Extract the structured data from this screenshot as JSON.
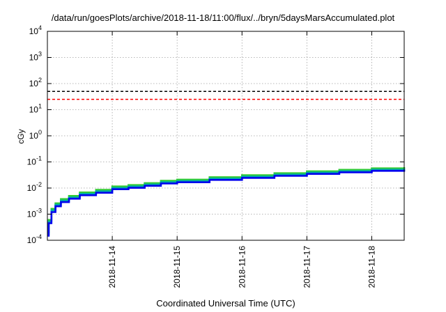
{
  "chart_data": {
    "type": "line",
    "title": "/data/run/goesPlots/archive/2018-11-18/11:00/flux/../bryn/5daysMarsAccumulated.plot",
    "xlabel": "Coordinated Universal Time (UTC)",
    "ylabel": "cGy",
    "yscale": "log",
    "ylim": [
      0.0001,
      10000
    ],
    "xlim": [
      "2018-11-13T00:00",
      "2018-11-18T12:00"
    ],
    "x_ticks": [
      "2018-11-14",
      "2018-11-15",
      "2018-11-16",
      "2018-11-17",
      "2018-11-18"
    ],
    "y_ticks": [
      {
        "value": 0.0001,
        "base": "10",
        "exp": "-4"
      },
      {
        "value": 0.001,
        "base": "10",
        "exp": "-3"
      },
      {
        "value": 0.01,
        "base": "10",
        "exp": "-2"
      },
      {
        "value": 0.1,
        "base": "10",
        "exp": "-1"
      },
      {
        "value": 1,
        "base": "10",
        "exp": "0"
      },
      {
        "value": 10,
        "base": "10",
        "exp": "1"
      },
      {
        "value": 100,
        "base": "10",
        "exp": "2"
      },
      {
        "value": 1000,
        "base": "10",
        "exp": "3"
      },
      {
        "value": 10000,
        "base": "10",
        "exp": "4"
      }
    ],
    "grid": true,
    "reference_lines": [
      {
        "y": 50,
        "color": "#000000",
        "style": "dashed"
      },
      {
        "y": 25,
        "color": "#ff0000",
        "style": "dashed"
      }
    ],
    "series": [
      {
        "color": "#33cc33",
        "x": [
          "2018-11-13T00:00",
          "2018-11-13T00:30",
          "2018-11-13T01:30",
          "2018-11-13T03:00",
          "2018-11-13T05:00",
          "2018-11-13T08:00",
          "2018-11-13T12:00",
          "2018-11-13T18:00",
          "2018-11-14T00:00",
          "2018-11-14T06:00",
          "2018-11-14T12:00",
          "2018-11-14T18:00",
          "2018-11-15T00:00",
          "2018-11-15T12:00",
          "2018-11-16T00:00",
          "2018-11-16T12:00",
          "2018-11-17T00:00",
          "2018-11-17T12:00",
          "2018-11-18T00:00",
          "2018-11-18T12:00"
        ],
        "y": [
          0.0002,
          0.0006,
          0.0016,
          0.0026,
          0.0038,
          0.005,
          0.0068,
          0.0085,
          0.0115,
          0.013,
          0.0155,
          0.019,
          0.021,
          0.026,
          0.031,
          0.037,
          0.044,
          0.05,
          0.057,
          0.063
        ]
      },
      {
        "color": "#00aaaa",
        "x": [
          "2018-11-13T00:00",
          "2018-11-13T00:30",
          "2018-11-13T01:30",
          "2018-11-13T03:00",
          "2018-11-13T05:00",
          "2018-11-13T08:00",
          "2018-11-13T12:00",
          "2018-11-13T18:00",
          "2018-11-14T00:00",
          "2018-11-14T06:00",
          "2018-11-14T12:00",
          "2018-11-14T18:00",
          "2018-11-15T00:00",
          "2018-11-15T12:00",
          "2018-11-16T00:00",
          "2018-11-16T12:00",
          "2018-11-17T00:00",
          "2018-11-17T12:00",
          "2018-11-18T00:00",
          "2018-11-18T12:00"
        ],
        "y": [
          0.00017,
          0.00052,
          0.0014,
          0.0023,
          0.0033,
          0.0044,
          0.006,
          0.0075,
          0.0101,
          0.0115,
          0.0137,
          0.0168,
          0.0186,
          0.023,
          0.0275,
          0.0328,
          0.039,
          0.0445,
          0.0505,
          0.056
        ]
      },
      {
        "color": "#0000ee",
        "x": [
          "2018-11-13T00:00",
          "2018-11-13T00:30",
          "2018-11-13T01:30",
          "2018-11-13T03:00",
          "2018-11-13T05:00",
          "2018-11-13T08:00",
          "2018-11-13T12:00",
          "2018-11-13T18:00",
          "2018-11-14T00:00",
          "2018-11-14T06:00",
          "2018-11-14T12:00",
          "2018-11-14T18:00",
          "2018-11-15T00:00",
          "2018-11-15T12:00",
          "2018-11-16T00:00",
          "2018-11-16T12:00",
          "2018-11-17T00:00",
          "2018-11-17T12:00",
          "2018-11-18T00:00",
          "2018-11-18T12:00"
        ],
        "y": [
          0.00015,
          0.00045,
          0.0012,
          0.002,
          0.0029,
          0.0039,
          0.0053,
          0.0066,
          0.009,
          0.0102,
          0.0122,
          0.015,
          0.0166,
          0.0205,
          0.0245,
          0.0293,
          0.0348,
          0.04,
          0.0455,
          0.05
        ]
      }
    ]
  }
}
